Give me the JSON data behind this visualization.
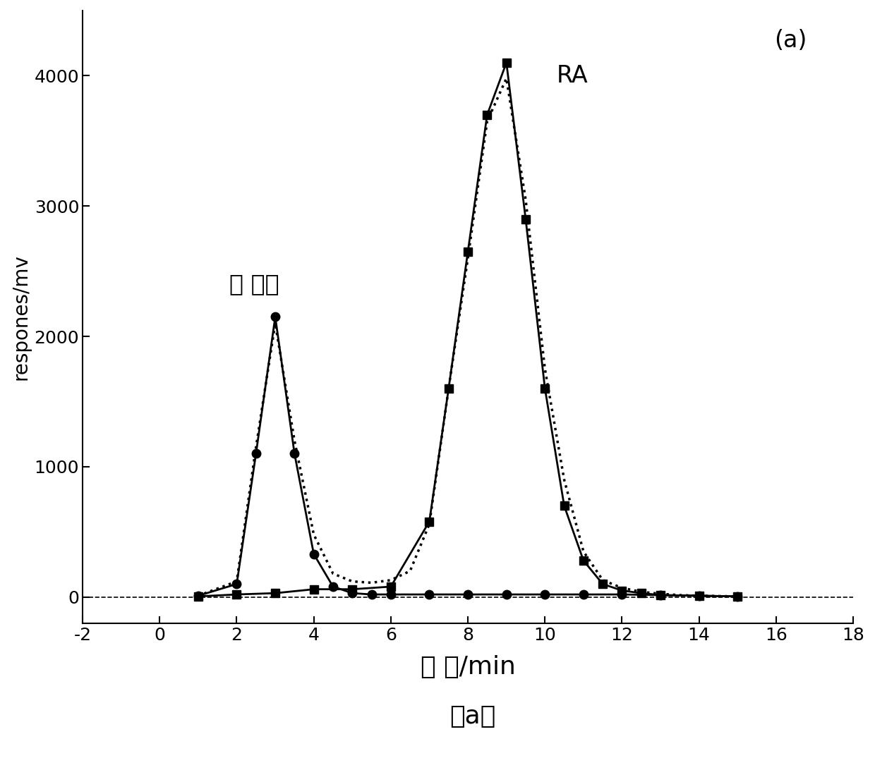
{
  "ylabel": "respones/mv",
  "xlabel": "时 间/min",
  "label_a": "(a)",
  "label_a_bottom": "（a）",
  "annotation_impurity": "前 杂质",
  "annotation_RA": "RA",
  "xlim": [
    -2,
    18
  ],
  "ylim": [
    -200,
    4500
  ],
  "yticks": [
    0,
    1000,
    2000,
    3000,
    4000
  ],
  "xticks": [
    -2,
    0,
    2,
    4,
    6,
    8,
    10,
    12,
    14,
    16,
    18
  ],
  "series1_x": [
    1.0,
    2.0,
    2.5,
    3.0,
    3.5,
    4.0,
    4.5,
    5.0,
    5.5,
    6.0,
    7.0,
    8.0,
    9.0,
    10.0,
    11.0,
    12.0,
    13.0,
    14.0,
    15.0
  ],
  "series1_y": [
    10,
    100,
    1100,
    2150,
    1100,
    330,
    80,
    30,
    20,
    20,
    20,
    20,
    20,
    20,
    20,
    20,
    15,
    10,
    5
  ],
  "series2_x": [
    1.0,
    2.0,
    3.0,
    4.0,
    5.0,
    6.0,
    7.0,
    7.5,
    8.0,
    8.5,
    9.0,
    9.5,
    10.0,
    10.5,
    11.0,
    11.5,
    12.0,
    12.5,
    13.0,
    14.0,
    15.0
  ],
  "series2_y": [
    5,
    20,
    30,
    60,
    60,
    80,
    580,
    1600,
    2650,
    3700,
    4100,
    2900,
    1600,
    700,
    280,
    100,
    50,
    30,
    15,
    10,
    5
  ],
  "series3_x": [
    1.0,
    2.0,
    2.5,
    3.0,
    3.5,
    4.0,
    4.5,
    5.0,
    5.5,
    6.0,
    6.5,
    7.0,
    7.5,
    8.0,
    8.5,
    9.0,
    9.5,
    10.0,
    10.5,
    11.0,
    11.5,
    12.0,
    12.5,
    13.0,
    13.5,
    14.0,
    15.0
  ],
  "series3_y": [
    10,
    120,
    1150,
    2100,
    1200,
    480,
    180,
    120,
    110,
    130,
    200,
    560,
    1600,
    2600,
    3650,
    3980,
    3050,
    1750,
    900,
    350,
    130,
    70,
    40,
    25,
    15,
    10,
    5
  ],
  "color": "#000000",
  "label_fontsize": 20,
  "tick_fontsize": 18,
  "annotation_fontsize": 22,
  "marker_size": 9
}
